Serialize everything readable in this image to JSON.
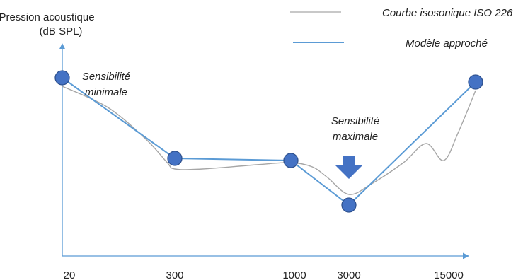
{
  "chart_data": {
    "type": "line",
    "ylabel_lines": [
      "Pression acoustique",
      "(dB SPL)"
    ],
    "xlabel": "",
    "x_tick_labels": [
      "20",
      "300",
      "1000",
      "3000",
      "15000"
    ],
    "y_range": [
      0,
      100
    ],
    "grid": false,
    "legend_placement": "top-right",
    "series": [
      {
        "name": "Courbe isosonique ISO 226",
        "color": "#a6a6a6",
        "style": "smooth",
        "x": [
          20,
          60,
          150,
          250,
          300,
          400,
          700,
          1000,
          1500,
          2000,
          3000,
          4000,
          6000,
          8000,
          10000,
          12000,
          15000
        ],
        "y": [
          80,
          70,
          55,
          44,
          41,
          41,
          43,
          44,
          42,
          37,
          29,
          34,
          44,
          53,
          45,
          58,
          78
        ]
      },
      {
        "name": "Modèle approché",
        "color": "#5b9bd5",
        "style": "straight",
        "marker_color": "#4472c4",
        "x": [
          20,
          300,
          1000,
          3000,
          15000
        ],
        "y": [
          84,
          46,
          45,
          24,
          82
        ]
      }
    ],
    "annotations": [
      {
        "lines": [
          "Sensibilité",
          "minimale"
        ],
        "near_x": 20
      },
      {
        "lines": [
          "Sensibilité",
          "maximale"
        ],
        "near_x": 3000,
        "arrow": "down-arrow-icon",
        "arrow_color": "#4472c4"
      }
    ]
  },
  "colors": {
    "axis": "#5b9bd5"
  }
}
